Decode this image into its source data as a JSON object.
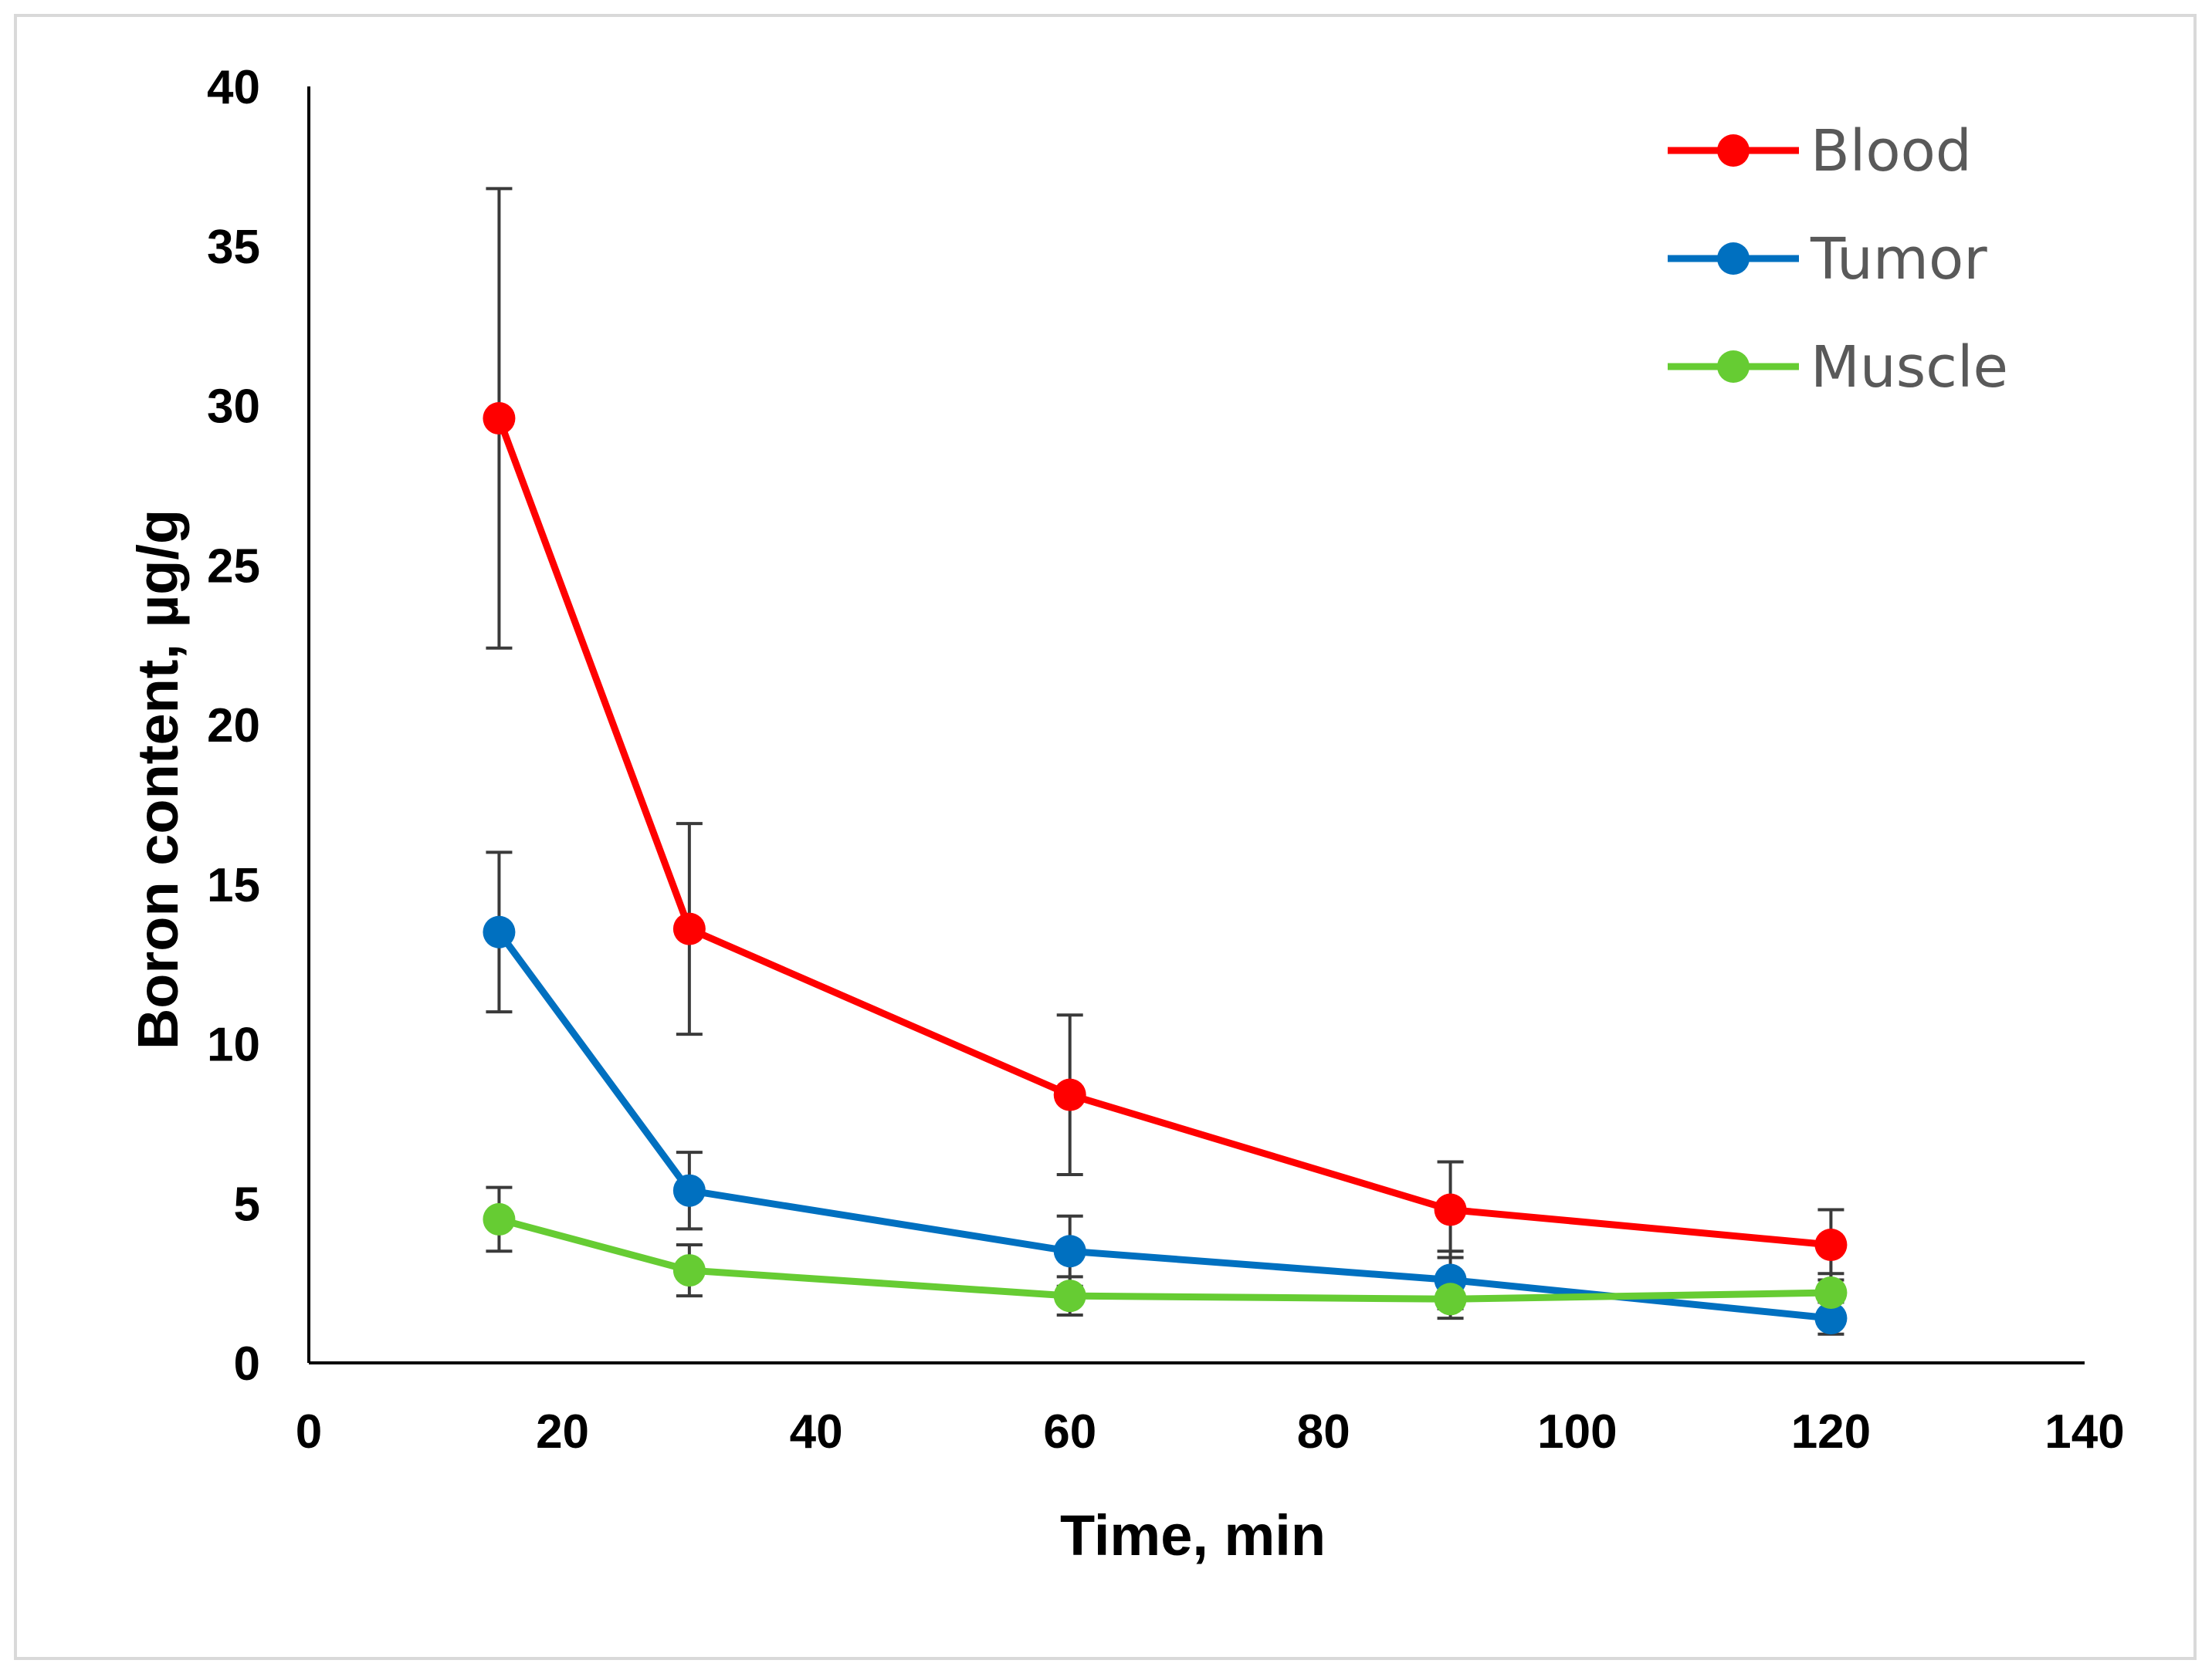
{
  "chart_data": {
    "type": "line",
    "xlabel": "Time, min",
    "ylabel": "Boron content, µg/g",
    "xlim": [
      0,
      140
    ],
    "ylim": [
      0,
      40
    ],
    "x_ticks": [
      "0",
      "20",
      "40",
      "60",
      "80",
      "100",
      "120",
      "140"
    ],
    "y_ticks": [
      "0",
      "5",
      "10",
      "15",
      "20",
      "25",
      "30",
      "35",
      "40"
    ],
    "grid": false,
    "legend_position": "top-right",
    "error_bars": true,
    "x": [
      15,
      30,
      60,
      90,
      120
    ],
    "series": [
      {
        "name": "Blood",
        "color": "#ff0000",
        "values": [
          29.6,
          13.6,
          8.4,
          4.8,
          3.7
        ],
        "errors": [
          7.2,
          3.3,
          2.5,
          1.5,
          1.1
        ]
      },
      {
        "name": "Tumor",
        "color": "#0070c0",
        "values": [
          13.5,
          5.4,
          3.5,
          2.6,
          1.4
        ],
        "errors": [
          2.5,
          1.2,
          1.1,
          0.9,
          0.5
        ]
      },
      {
        "name": "Muscle",
        "color": "#66cc33",
        "values": [
          4.5,
          2.9,
          2.1,
          2.0,
          2.2
        ],
        "errors": [
          1.0,
          0.8,
          0.6,
          0.6,
          0.6
        ]
      }
    ]
  }
}
